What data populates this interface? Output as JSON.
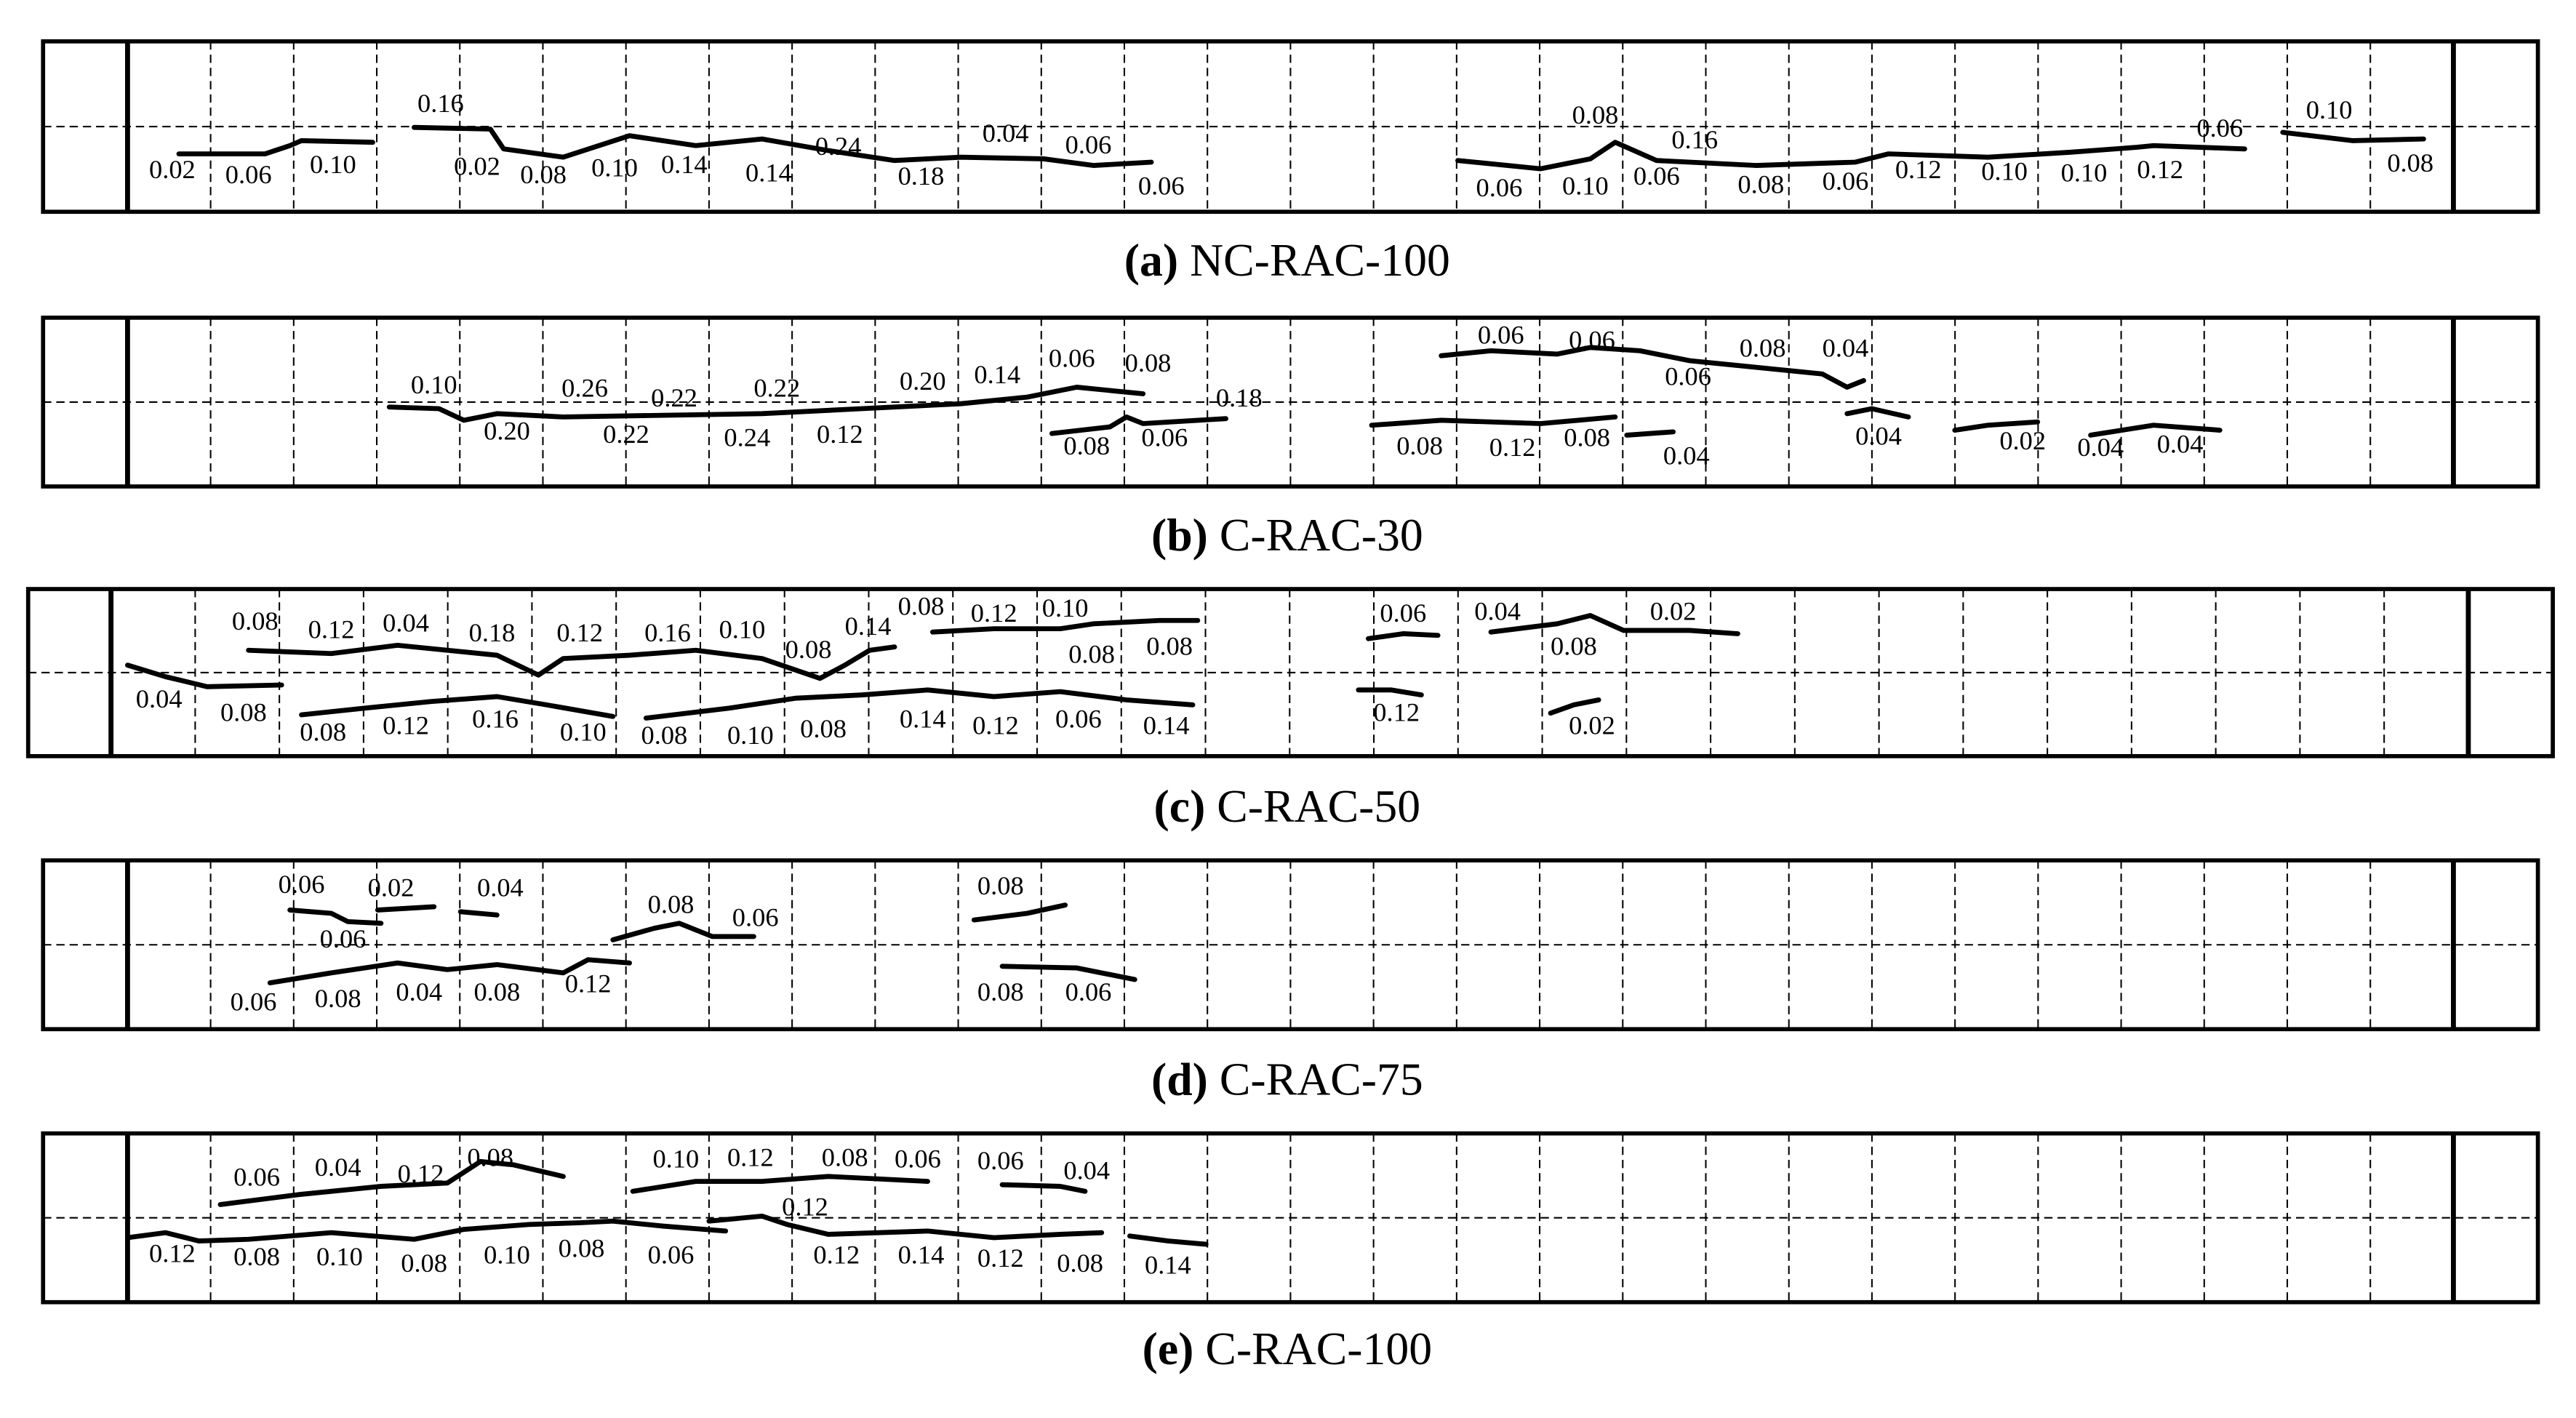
{
  "panels": [
    {
      "letter": "(a)",
      "title": "NC-RAC-100",
      "labels": [
        "0.02",
        "0.06",
        "0.10",
        "0.16",
        "0.02",
        "0.08",
        "0.10",
        "0.14",
        "0.14",
        "0.24",
        "0.18",
        "0.04",
        "0.06",
        "0.06",
        "0.08",
        "0.16",
        "0.06",
        "0.10",
        "0.06",
        "0.08",
        "0.06",
        "0.12",
        "0.10",
        "0.10",
        "0.12",
        "0.06",
        "0.10",
        "0.08"
      ]
    },
    {
      "letter": "(b)",
      "title": "C-RAC-30",
      "labels": [
        "0.10",
        "0.26",
        "0.22",
        "0.22",
        "0.20",
        "0.14",
        "0.06",
        "0.08",
        "0.18",
        "0.20",
        "0.22",
        "0.24",
        "0.12",
        "0.08",
        "0.06",
        "0.06",
        "0.06",
        "0.08",
        "0.04",
        "0.06",
        "0.08",
        "0.12",
        "0.08",
        "0.04",
        "0.04",
        "0.02",
        "0.04",
        "0.04"
      ]
    },
    {
      "letter": "(c)",
      "title": "C-RAC-50",
      "labels": [
        "0.08",
        "0.12",
        "0.04",
        "0.18",
        "0.12",
        "0.16",
        "0.10",
        "0.08",
        "0.14",
        "0.08",
        "0.12",
        "0.10",
        "0.08",
        "0.08",
        "0.04",
        "0.08",
        "0.08",
        "0.12",
        "0.16",
        "0.10",
        "0.08",
        "0.10",
        "0.08",
        "0.14",
        "0.12",
        "0.06",
        "0.14",
        "0.06",
        "0.04",
        "0.08",
        "0.02",
        "0.12",
        "0.02"
      ]
    },
    {
      "letter": "(d)",
      "title": "C-RAC-75",
      "labels": [
        "0.06",
        "0.02",
        "0.04",
        "0.06",
        "0.08",
        "0.06",
        "0.08",
        "0.06",
        "0.08",
        "0.04",
        "0.08",
        "0.12",
        "0.08",
        "0.06"
      ]
    },
    {
      "letter": "(e)",
      "title": "C-RAC-100",
      "labels": [
        "0.06",
        "0.04",
        "0.12",
        "0.08",
        "0.10",
        "0.12",
        "0.08",
        "0.06",
        "0.06",
        "0.04",
        "0.12",
        "0.12",
        "0.08",
        "0.10",
        "0.08",
        "0.10",
        "0.08",
        "0.06",
        "0.12",
        "0.14",
        "0.12",
        "0.08",
        "0.14"
      ]
    }
  ]
}
